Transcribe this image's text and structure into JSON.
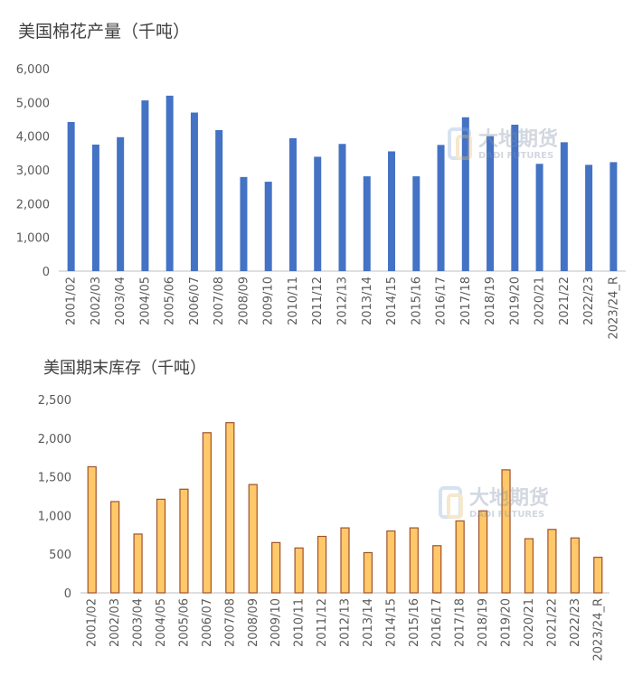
{
  "watermark": {
    "brand_cn": "大地期货",
    "brand_en": "DADI FUTURES"
  },
  "chart_data": [
    {
      "type": "bar",
      "title": "美国棉花产量（千吨）",
      "color": "#4472C4",
      "edge": "#4472C4",
      "ylim": [
        0,
        6000
      ],
      "yticks": [
        0,
        1000,
        2000,
        3000,
        4000,
        5000,
        6000
      ],
      "ytick_labels": [
        "0",
        "1,000",
        "2,000",
        "3,000",
        "4,000",
        "5,000",
        "6,000"
      ],
      "grid": false,
      "legend": "none",
      "categories": [
        "2001/02",
        "2002/03",
        "2003/04",
        "2004/05",
        "2005/06",
        "2006/07",
        "2007/08",
        "2008/09",
        "2009/10",
        "2010/11",
        "2011/12",
        "2012/13",
        "2013/14",
        "2014/15",
        "2015/16",
        "2016/17",
        "2017/18",
        "2018/19",
        "2019/20",
        "2020/21",
        "2021/22",
        "2022/23",
        "2023/24_R"
      ],
      "values": [
        4420,
        3750,
        3970,
        5060,
        5200,
        4700,
        4180,
        2790,
        2650,
        3940,
        3390,
        3770,
        2810,
        3550,
        2810,
        3740,
        4560,
        4000,
        4340,
        3180,
        3820,
        3150,
        3230
      ]
    },
    {
      "type": "bar",
      "title": "美国期末库存（千吨）",
      "color": "#FFC869",
      "edge": "#A0522D",
      "ylim": [
        0,
        2500
      ],
      "yticks": [
        0,
        500,
        1000,
        1500,
        2000,
        2500
      ],
      "ytick_labels": [
        "0",
        "500",
        "1,000",
        "1,500",
        "2,000",
        "2,500"
      ],
      "grid": false,
      "legend": "none",
      "categories": [
        "2001/02",
        "2002/03",
        "2003/04",
        "2004/05",
        "2005/06",
        "2006/07",
        "2007/08",
        "2008/09",
        "2009/10",
        "2010/11",
        "2011/12",
        "2012/13",
        "2013/14",
        "2014/15",
        "2015/16",
        "2016/17",
        "2017/18",
        "2018/19",
        "2019/20",
        "2020/21",
        "2021/22",
        "2022/23",
        "2023/24_R"
      ],
      "values": [
        1630,
        1180,
        760,
        1210,
        1340,
        2070,
        2200,
        1400,
        650,
        580,
        730,
        840,
        520,
        800,
        840,
        610,
        930,
        1060,
        1590,
        700,
        820,
        710,
        460
      ]
    }
  ]
}
